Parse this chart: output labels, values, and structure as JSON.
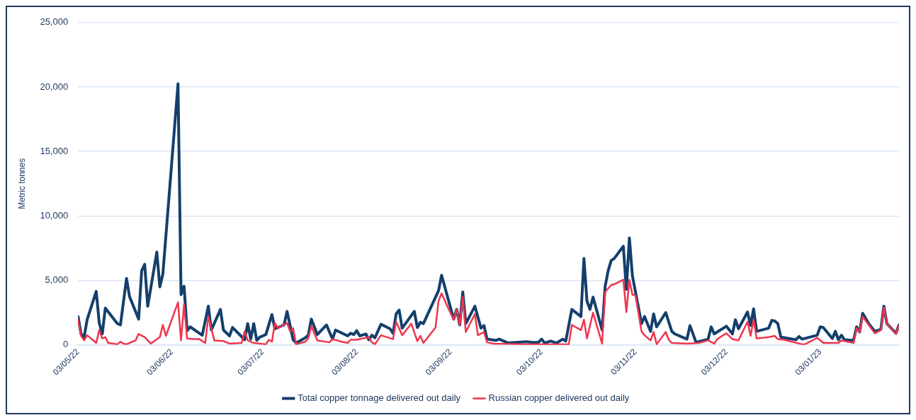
{
  "chart_data": {
    "type": "line",
    "ylabel": "Metric tonnes",
    "ylim": [
      0,
      25000
    ],
    "yticks": [
      {
        "value": 0,
        "label": "0"
      },
      {
        "value": 5000,
        "label": "5,000"
      },
      {
        "value": 10000,
        "label": "10,000"
      },
      {
        "value": 15000,
        "label": "15,000"
      },
      {
        "value": 20000,
        "label": "20,000"
      },
      {
        "value": 25000,
        "label": "25,000"
      }
    ],
    "xlim": [
      "2022-05-03",
      "2023-01-29"
    ],
    "xticks": [
      {
        "value": "2022-05-03",
        "label": "03/05/22"
      },
      {
        "value": "2022-06-03",
        "label": "03/06/22"
      },
      {
        "value": "2022-07-03",
        "label": "03/07/22"
      },
      {
        "value": "2022-08-03",
        "label": "03/08/22"
      },
      {
        "value": "2022-09-03",
        "label": "03/09/22"
      },
      {
        "value": "2022-10-03",
        "label": "03/10/22"
      },
      {
        "value": "2022-11-03",
        "label": "03/11/22"
      },
      {
        "value": "2022-12-03",
        "label": "03/12/22"
      },
      {
        "value": "2023-01-03",
        "label": "03/01/23"
      }
    ],
    "grid": "y",
    "legend": "bottom",
    "marker": "none",
    "line_style": "solid",
    "series": [
      {
        "name": "Total copper tonnage delivered out daily",
        "color": "#143f6b",
        "x": [
          "2022-05-03",
          "2022-05-04",
          "2022-05-05",
          "2022-05-06",
          "2022-05-09",
          "2022-05-10",
          "2022-05-11",
          "2022-05-12",
          "2022-05-16",
          "2022-05-17",
          "2022-05-19",
          "2022-05-20",
          "2022-05-23",
          "2022-05-24",
          "2022-05-25",
          "2022-05-26",
          "2022-05-29",
          "2022-05-30",
          "2022-05-31",
          "2022-06-05",
          "2022-06-06",
          "2022-06-07",
          "2022-06-08",
          "2022-06-09",
          "2022-06-13",
          "2022-06-15",
          "2022-06-16",
          "2022-06-19",
          "2022-06-20",
          "2022-06-22",
          "2022-06-23",
          "2022-06-27",
          "2022-06-28",
          "2022-06-29",
          "2022-06-30",
          "2022-07-01",
          "2022-07-02",
          "2022-07-04",
          "2022-07-06",
          "2022-07-07",
          "2022-07-10",
          "2022-07-11",
          "2022-07-13",
          "2022-07-14",
          "2022-07-17",
          "2022-07-18",
          "2022-07-19",
          "2022-07-21",
          "2022-07-24",
          "2022-07-26",
          "2022-07-27",
          "2022-07-31",
          "2022-08-01",
          "2022-08-02",
          "2022-08-03",
          "2022-08-04",
          "2022-08-06",
          "2022-08-07",
          "2022-08-08",
          "2022-08-09",
          "2022-08-11",
          "2022-08-14",
          "2022-08-15",
          "2022-08-16",
          "2022-08-17",
          "2022-08-18",
          "2022-08-22",
          "2022-08-23",
          "2022-08-24",
          "2022-08-25",
          "2022-08-30",
          "2022-08-31",
          "2022-09-04",
          "2022-09-05",
          "2022-09-06",
          "2022-09-07",
          "2022-09-08",
          "2022-09-11",
          "2022-09-13",
          "2022-09-14",
          "2022-09-15",
          "2022-09-18",
          "2022-09-19",
          "2022-09-22",
          "2022-09-28",
          "2022-09-30",
          "2022-10-02",
          "2022-10-03",
          "2022-10-04",
          "2022-10-06",
          "2022-10-08",
          "2022-10-10",
          "2022-10-11",
          "2022-10-13",
          "2022-10-16",
          "2022-10-17",
          "2022-10-18",
          "2022-10-19",
          "2022-10-20",
          "2022-10-23",
          "2022-10-24",
          "2022-10-25",
          "2022-10-26",
          "2022-10-27",
          "2022-10-30",
          "2022-10-31",
          "2022-11-01",
          "2022-11-02",
          "2022-11-05",
          "2022-11-06",
          "2022-11-08",
          "2022-11-09",
          "2022-11-10",
          "2022-11-13",
          "2022-11-15",
          "2022-11-16",
          "2022-11-20",
          "2022-11-21",
          "2022-11-23",
          "2022-11-27",
          "2022-11-28",
          "2022-11-29",
          "2022-12-03",
          "2022-12-05",
          "2022-12-06",
          "2022-12-07",
          "2022-12-10",
          "2022-12-11",
          "2022-12-12",
          "2022-12-13",
          "2022-12-17",
          "2022-12-18",
          "2022-12-19",
          "2022-12-20",
          "2022-12-21",
          "2022-12-26",
          "2022-12-27",
          "2022-12-28",
          "2023-01-02",
          "2023-01-03",
          "2023-01-04",
          "2023-01-07",
          "2023-01-08",
          "2023-01-09",
          "2023-01-10",
          "2023-01-11",
          "2023-01-14",
          "2023-01-15",
          "2023-01-16",
          "2023-01-17",
          "2023-01-19",
          "2023-01-21",
          "2023-01-23",
          "2023-01-24",
          "2023-01-25",
          "2023-01-28",
          "2023-01-29"
        ],
        "values": [
          2200,
          850,
          600,
          1950,
          4150,
          1700,
          850,
          2850,
          1650,
          1550,
          5150,
          3750,
          2000,
          5750,
          6250,
          3000,
          7200,
          4500,
          5500,
          20250,
          3900,
          4550,
          1100,
          1400,
          750,
          3000,
          1150,
          2750,
          1150,
          700,
          1350,
          400,
          1650,
          450,
          1650,
          350,
          600,
          800,
          2350,
          1250,
          1550,
          2600,
          400,
          150,
          550,
          750,
          2000,
          800,
          1550,
          450,
          1150,
          700,
          900,
          800,
          1100,
          700,
          850,
          400,
          750,
          550,
          1600,
          1250,
          900,
          2400,
          2700,
          1300,
          2600,
          1350,
          1750,
          1650,
          4200,
          5400,
          2000,
          2750,
          1550,
          4100,
          1650,
          3000,
          1300,
          1500,
          450,
          350,
          450,
          150,
          250,
          200,
          200,
          450,
          150,
          300,
          150,
          450,
          300,
          2750,
          2200,
          6700,
          3400,
          2750,
          3700,
          1150,
          4550,
          5750,
          6550,
          6700,
          7650,
          4300,
          8300,
          5350,
          1650,
          2200,
          1050,
          2400,
          1400,
          2500,
          1050,
          850,
          450,
          1500,
          200,
          450,
          1400,
          850,
          1450,
          850,
          1950,
          1250,
          2550,
          1500,
          2800,
          1050,
          1300,
          1900,
          1850,
          1650,
          600,
          400,
          650,
          450,
          750,
          1400,
          1350,
          500,
          1050,
          400,
          750,
          400,
          350,
          1400,
          1000,
          2450,
          1650,
          1050,
          1200,
          3000,
          1650,
          900,
          1550
        ]
      },
      {
        "name": "Russian copper delivered out daily",
        "color": "#f0344e",
        "x": [
          "2022-05-03",
          "2022-05-04",
          "2022-05-05",
          "2022-05-06",
          "2022-05-09",
          "2022-05-10",
          "2022-05-11",
          "2022-05-12",
          "2022-05-13",
          "2022-05-16",
          "2022-05-17",
          "2022-05-18",
          "2022-05-19",
          "2022-05-22",
          "2022-05-23",
          "2022-05-25",
          "2022-05-27",
          "2022-05-30",
          "2022-05-31",
          "2022-06-01",
          "2022-06-05",
          "2022-06-06",
          "2022-06-07",
          "2022-06-08",
          "2022-06-10",
          "2022-06-12",
          "2022-06-14",
          "2022-06-15",
          "2022-06-17",
          "2022-06-20",
          "2022-06-22",
          "2022-06-26",
          "2022-06-27",
          "2022-06-28",
          "2022-06-30",
          "2022-07-04",
          "2022-07-05",
          "2022-07-06",
          "2022-07-07",
          "2022-07-08",
          "2022-07-11",
          "2022-07-12",
          "2022-07-13",
          "2022-07-14",
          "2022-07-17",
          "2022-07-18",
          "2022-07-19",
          "2022-07-21",
          "2022-07-25",
          "2022-07-26",
          "2022-07-29",
          "2022-07-31",
          "2022-08-01",
          "2022-08-03",
          "2022-08-07",
          "2022-08-08",
          "2022-08-09",
          "2022-08-11",
          "2022-08-15",
          "2022-08-16",
          "2022-08-18",
          "2022-08-21",
          "2022-08-23",
          "2022-08-24",
          "2022-08-25",
          "2022-08-29",
          "2022-08-30",
          "2022-08-31",
          "2022-09-02",
          "2022-09-04",
          "2022-09-05",
          "2022-09-06",
          "2022-09-07",
          "2022-09-08",
          "2022-09-11",
          "2022-09-12",
          "2022-09-14",
          "2022-09-15",
          "2022-09-17",
          "2022-09-28",
          "2022-10-12",
          "2022-10-13",
          "2022-10-16",
          "2022-10-17",
          "2022-10-18",
          "2022-10-20",
          "2022-10-23",
          "2022-10-24",
          "2022-10-26",
          "2022-10-27",
          "2022-10-30",
          "2022-10-31",
          "2022-11-01",
          "2022-11-02",
          "2022-11-03",
          "2022-11-05",
          "2022-11-06",
          "2022-11-08",
          "2022-11-09",
          "2022-11-10",
          "2022-11-13",
          "2022-11-14",
          "2022-11-15",
          "2022-11-20",
          "2022-11-24",
          "2022-11-27",
          "2022-11-29",
          "2022-11-30",
          "2022-12-03",
          "2022-12-05",
          "2022-12-07",
          "2022-12-10",
          "2022-12-11",
          "2022-12-12",
          "2022-12-13",
          "2022-12-17",
          "2022-12-19",
          "2022-12-20",
          "2022-12-22",
          "2022-12-28",
          "2022-12-29",
          "2023-01-02",
          "2023-01-04",
          "2023-01-09",
          "2023-01-10",
          "2023-01-14",
          "2023-01-15",
          "2023-01-16",
          "2023-01-17",
          "2023-01-19",
          "2023-01-21",
          "2023-01-23",
          "2023-01-24",
          "2023-01-25",
          "2023-01-28",
          "2023-01-29"
        ],
        "values": [
          1950,
          700,
          350,
          750,
          150,
          1150,
          500,
          600,
          150,
          50,
          250,
          100,
          50,
          350,
          850,
          600,
          100,
          600,
          1550,
          700,
          3300,
          350,
          3150,
          500,
          450,
          450,
          150,
          2200,
          350,
          300,
          100,
          150,
          1050,
          350,
          150,
          50,
          400,
          250,
          1700,
          1300,
          1700,
          1050,
          1300,
          50,
          250,
          500,
          1450,
          350,
          200,
          450,
          250,
          150,
          400,
          400,
          600,
          200,
          50,
          750,
          450,
          1800,
          750,
          1650,
          300,
          700,
          150,
          1350,
          3400,
          4000,
          2950,
          1950,
          2750,
          1550,
          3700,
          1000,
          2400,
          750,
          1000,
          200,
          100,
          50,
          50,
          1550,
          1150,
          1950,
          500,
          2500,
          100,
          4100,
          4650,
          4700,
          5050,
          2550,
          5050,
          3900,
          3850,
          1050,
          750,
          350,
          1000,
          50,
          1000,
          400,
          150,
          100,
          150,
          350,
          100,
          450,
          900,
          450,
          350,
          1800,
          700,
          1950,
          500,
          600,
          700,
          450,
          400,
          50,
          50,
          550,
          150,
          150,
          350,
          150,
          1300,
          1000,
          2200,
          1550,
          900,
          1150,
          2900,
          1650,
          850,
          1500
        ]
      }
    ]
  }
}
